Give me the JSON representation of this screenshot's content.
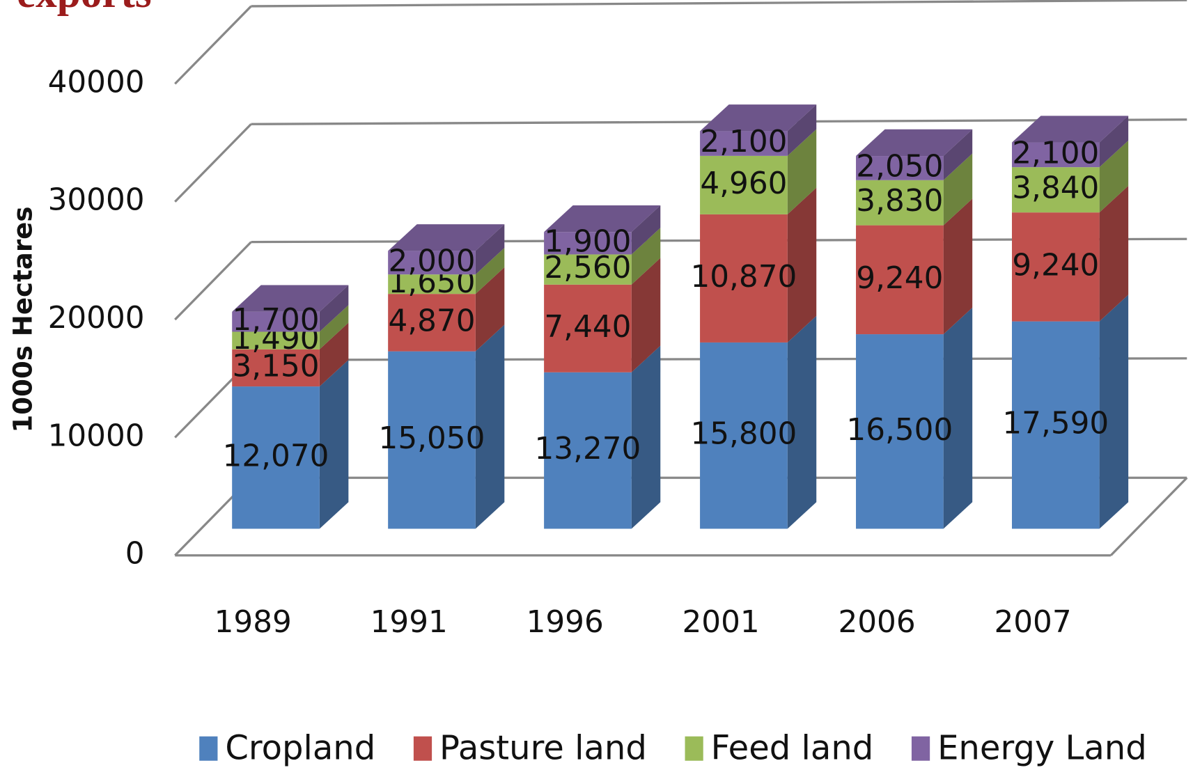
{
  "chart_data": {
    "type": "bar",
    "stacked": true,
    "title": "exports",
    "y_label": "1000s Hectares",
    "categories": [
      "1989",
      "1991",
      "1996",
      "2001",
      "2006",
      "2007"
    ],
    "series": [
      {
        "name": "Cropland",
        "color": "#4f81bd",
        "values": [
          12070,
          15050,
          13270,
          15800,
          16500,
          17590
        ],
        "value_labels": [
          "12,070",
          "15,050",
          "13,270",
          "15,800",
          "16,500",
          "17,590"
        ]
      },
      {
        "name": "Pasture land",
        "color": "#c0504d",
        "values": [
          3150,
          4870,
          7440,
          10870,
          9240,
          9240
        ],
        "value_labels": [
          "3,150",
          "4,870",
          "7,440",
          "10,870",
          "9,240",
          "9,240"
        ]
      },
      {
        "name": "Feed land",
        "color": "#9bbb59",
        "values": [
          1490,
          1650,
          2560,
          4960,
          3830,
          3840
        ],
        "value_labels": [
          "1,490",
          "1,650",
          "2,560",
          "4,960",
          "3,830",
          "3,840"
        ]
      },
      {
        "name": "Energy Land",
        "color": "#8064a2",
        "values": [
          1700,
          2000,
          1900,
          2100,
          2050,
          2100
        ],
        "value_labels": [
          "1,700",
          "2,000",
          "1,900",
          "2,100",
          "2,050",
          "2,100"
        ]
      }
    ],
    "ylim": [
      0,
      40000
    ],
    "yticks": [
      0,
      10000,
      20000,
      30000,
      40000
    ],
    "grid": true,
    "legend": "bottom"
  }
}
